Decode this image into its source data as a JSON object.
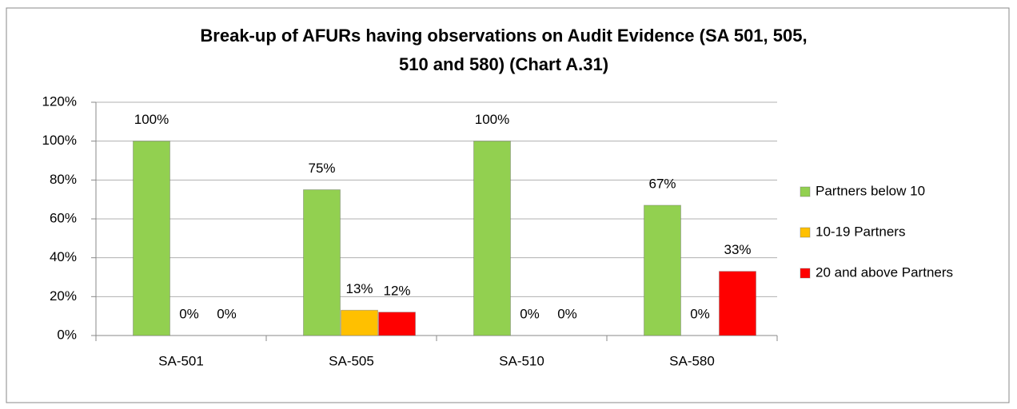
{
  "chart_data": {
    "type": "bar",
    "title": [
      "Break-up of AFURs having observations on Audit Evidence (SA  501, 505,",
      "510 and 580) (Chart A.31)"
    ],
    "categories": [
      "SA-501",
      "SA-505",
      "SA-510",
      "SA-580"
    ],
    "series": [
      {
        "name": "Partners below 10",
        "color": "#92d050",
        "values": [
          100,
          75,
          100,
          67
        ],
        "value_labels": [
          "100%",
          "75%",
          "100%",
          "67%"
        ]
      },
      {
        "name": "10-19 Partners",
        "color": "#ffc000",
        "values": [
          0,
          13,
          0,
          0
        ],
        "value_labels": [
          "0%",
          "13%",
          "0%",
          "0%"
        ]
      },
      {
        "name": "20 and above Partners",
        "color": "#ff0000",
        "values": [
          0,
          12,
          0,
          33
        ],
        "value_labels": [
          "0%",
          "12%",
          "0%",
          "33%"
        ]
      }
    ],
    "ylim": [
      0,
      120
    ],
    "yticks": [
      {
        "value": 0,
        "label": "0%"
      },
      {
        "value": 20,
        "label": "20%"
      },
      {
        "value": 40,
        "label": "40%"
      },
      {
        "value": 60,
        "label": "60%"
      },
      {
        "value": 80,
        "label": "80%"
      },
      {
        "value": 100,
        "label": "100%"
      },
      {
        "value": 120,
        "label": "120%"
      }
    ],
    "grid": true,
    "legend": "right"
  }
}
